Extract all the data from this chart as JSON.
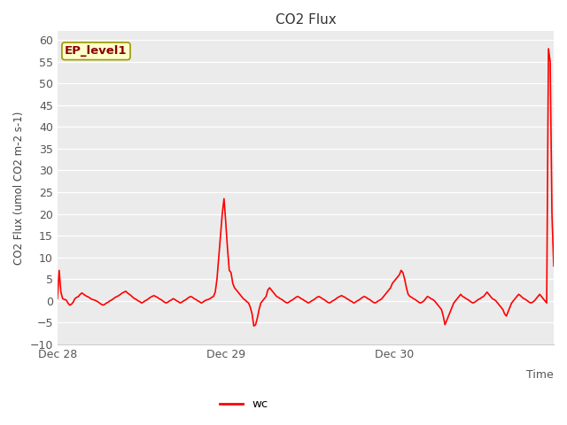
{
  "title": "CO2 Flux",
  "ylabel": "CO2 Flux (umol CO2 m-2 s-1)",
  "ylim": [
    -10,
    62
  ],
  "yticks": [
    -10,
    -5,
    0,
    5,
    10,
    15,
    20,
    25,
    30,
    35,
    40,
    45,
    50,
    55,
    60
  ],
  "line_color": "#FF0000",
  "line_width": 1.2,
  "bg_color": "#EBEBEB",
  "legend_label": "wc",
  "annotation_text": "EP_level1",
  "annotation_bg": "#FFFFCC",
  "annotation_border": "#999900",
  "x_tick_labels": [
    "Dec 28",
    "Dec 29",
    "Dec 30"
  ],
  "x_tick_positions": [
    0,
    96,
    192
  ],
  "xlabel_text": "Time",
  "total_points": 284,
  "y_values": [
    0.5,
    7.0,
    2.0,
    0.5,
    0.3,
    0.2,
    -0.5,
    -1.0,
    -0.8,
    -0.3,
    0.5,
    0.8,
    1.0,
    1.5,
    1.8,
    1.5,
    1.2,
    1.0,
    0.8,
    0.5,
    0.3,
    0.2,
    0.0,
    -0.2,
    -0.5,
    -0.8,
    -1.0,
    -0.8,
    -0.5,
    -0.3,
    0.0,
    0.2,
    0.5,
    0.8,
    1.0,
    1.2,
    1.5,
    1.8,
    2.0,
    2.2,
    1.8,
    1.5,
    1.2,
    0.8,
    0.5,
    0.3,
    0.0,
    -0.2,
    -0.5,
    -0.3,
    0.0,
    0.2,
    0.5,
    0.8,
    1.0,
    1.2,
    1.0,
    0.8,
    0.5,
    0.3,
    0.0,
    -0.3,
    -0.5,
    -0.3,
    0.0,
    0.2,
    0.5,
    0.3,
    0.0,
    -0.2,
    -0.5,
    -0.3,
    0.0,
    0.2,
    0.5,
    0.8,
    1.0,
    0.8,
    0.5,
    0.3,
    0.0,
    -0.2,
    -0.5,
    -0.3,
    0.0,
    0.2,
    0.3,
    0.5,
    0.8,
    1.0,
    2.0,
    5.0,
    10.0,
    15.0,
    20.0,
    23.5,
    18.0,
    12.0,
    7.0,
    6.5,
    4.0,
    3.0,
    2.5,
    2.0,
    1.5,
    1.0,
    0.5,
    0.2,
    -0.2,
    -0.5,
    -1.5,
    -3.0,
    -5.8,
    -5.5,
    -4.0,
    -2.0,
    -0.5,
    0.0,
    0.5,
    1.0,
    2.5,
    3.0,
    2.5,
    2.0,
    1.5,
    1.0,
    0.8,
    0.5,
    0.3,
    0.0,
    -0.3,
    -0.5,
    -0.3,
    0.0,
    0.2,
    0.5,
    0.8,
    1.0,
    0.8,
    0.5,
    0.3,
    0.0,
    -0.2,
    -0.5,
    -0.3,
    0.0,
    0.2,
    0.5,
    0.8,
    1.0,
    0.8,
    0.5,
    0.3,
    0.0,
    -0.3,
    -0.5,
    -0.3,
    0.0,
    0.2,
    0.5,
    0.8,
    1.0,
    1.2,
    1.0,
    0.8,
    0.5,
    0.3,
    0.0,
    -0.2,
    -0.5,
    -0.3,
    0.0,
    0.2,
    0.5,
    0.8,
    1.0,
    0.8,
    0.5,
    0.3,
    0.0,
    -0.3,
    -0.5,
    -0.3,
    0.0,
    0.2,
    0.5,
    1.0,
    1.5,
    2.0,
    2.5,
    3.0,
    4.0,
    4.5,
    5.0,
    5.5,
    6.0,
    7.0,
    6.5,
    5.0,
    3.0,
    1.5,
    1.0,
    0.8,
    0.5,
    0.3,
    0.0,
    -0.3,
    -0.5,
    -0.3,
    0.0,
    0.5,
    1.0,
    0.8,
    0.5,
    0.3,
    0.0,
    -0.5,
    -1.0,
    -1.5,
    -2.0,
    -3.5,
    -5.5,
    -4.5,
    -3.5,
    -2.5,
    -1.5,
    -0.5,
    0.0,
    0.5,
    1.0,
    1.5,
    1.0,
    0.8,
    0.5,
    0.3,
    0.0,
    -0.3,
    -0.5,
    -0.3,
    0.0,
    0.3,
    0.5,
    0.8,
    1.0,
    1.5,
    2.0,
    1.5,
    1.0,
    0.5,
    0.3,
    0.0,
    -0.5,
    -1.0,
    -1.5,
    -2.0,
    -3.0,
    -3.5,
    -2.5,
    -1.5,
    -0.5,
    0.0,
    0.5,
    1.0,
    1.5,
    1.2,
    0.8,
    0.5,
    0.3,
    0.0,
    -0.3,
    -0.5,
    -0.3,
    0.0,
    0.5,
    1.0,
    1.5,
    1.0,
    0.5,
    0.0,
    -0.5,
    58.0,
    55.0,
    20.0,
    8.0
  ]
}
